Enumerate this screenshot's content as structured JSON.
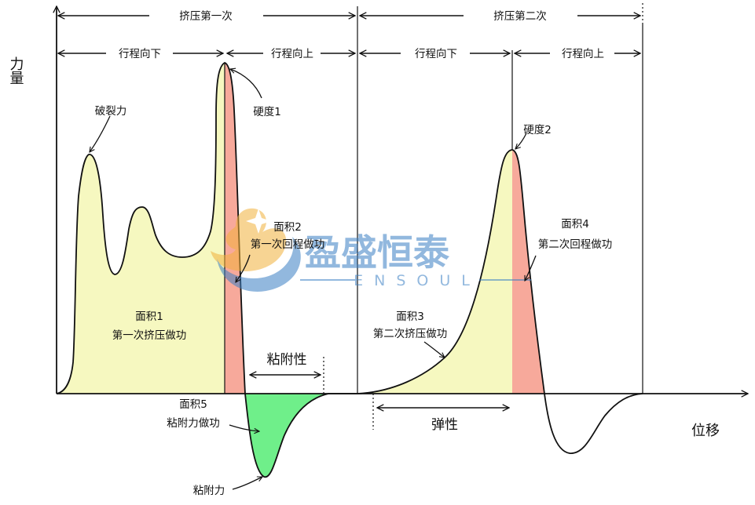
{
  "axes": {
    "y_label": "力量",
    "x_label": "位移"
  },
  "top_spans": {
    "compression_1": "挤压第一次",
    "compression_2": "挤压第二次",
    "stroke_down_1": "行程向下",
    "stroke_up_1": "行程向上",
    "stroke_down_2": "行程向下",
    "stroke_up_2": "行程向上"
  },
  "annotations": {
    "fracturability": "破裂力",
    "hardness_1": "硬度1",
    "hardness_2": "硬度2",
    "area2_title": "面积2",
    "area2_desc": "第一次回程做功",
    "area1_title": "面积1",
    "area1_desc": "第一次挤压做功",
    "area3_title": "面积3",
    "area3_desc": "第二次挤压做功",
    "area4_title": "面积4",
    "area4_desc": "第二次回程做功",
    "area5_title": "面积5",
    "area5_desc": "粘附力做功",
    "adhesive_force": "粘附力",
    "adhesiveness": "粘附性",
    "springiness": "弹性"
  },
  "watermark": {
    "brand": "盈盛恒泰",
    "brand_en": "ENSOUL"
  },
  "colors": {
    "area_compression": "#f6f8c0",
    "area_return": "#f7a99b",
    "area_adhesive": "#6fef8a",
    "watermark_blue": "#3a7fc4",
    "watermark_orange": "#f2b13c"
  }
}
